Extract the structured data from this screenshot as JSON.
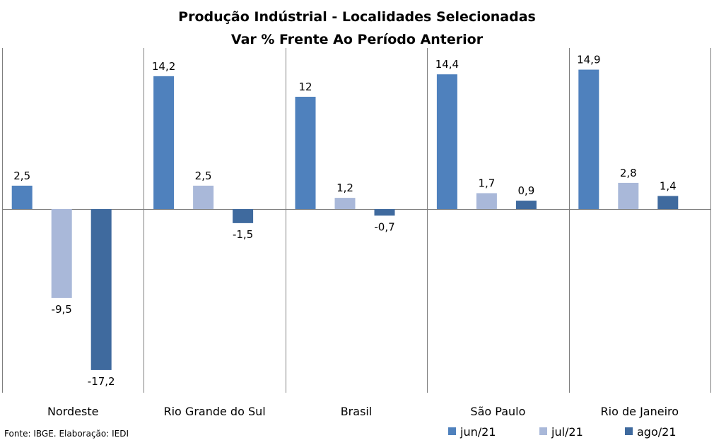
{
  "chart_data": {
    "type": "bar",
    "title": "Produção Indústrial - Localidades Selecionadas",
    "subtitle": "Var % Frente Ao Período Anterior",
    "categories": [
      "Nordeste",
      "Rio Grande do Sul",
      "Brasil",
      "São Paulo",
      "Rio de Janeiro"
    ],
    "series": [
      {
        "name": "jun/21",
        "color": "#4F81BD",
        "values": [
          2.5,
          14.2,
          12.0,
          14.4,
          14.9
        ],
        "labels": [
          "2,5",
          "14,2",
          "12",
          "14,4",
          "14,9"
        ]
      },
      {
        "name": "jul/21",
        "color": "#A9B8D9",
        "values": [
          -9.5,
          2.5,
          1.2,
          1.7,
          2.8
        ],
        "labels": [
          "-9,5",
          "2,5",
          "1,2",
          "1,7",
          "2,8"
        ]
      },
      {
        "name": "ago/21",
        "color": "#3F6A9E",
        "values": [
          -17.2,
          -1.5,
          -0.7,
          0.9,
          1.4
        ],
        "labels": [
          "-17,2",
          "-1,5",
          "-0,7",
          "0,9",
          "1,4"
        ]
      }
    ],
    "legend_position": "bottom-right",
    "category_separators": true,
    "gridlines": false
  },
  "source_note": "Fonte: IBGE. Elaboração: IEDI"
}
